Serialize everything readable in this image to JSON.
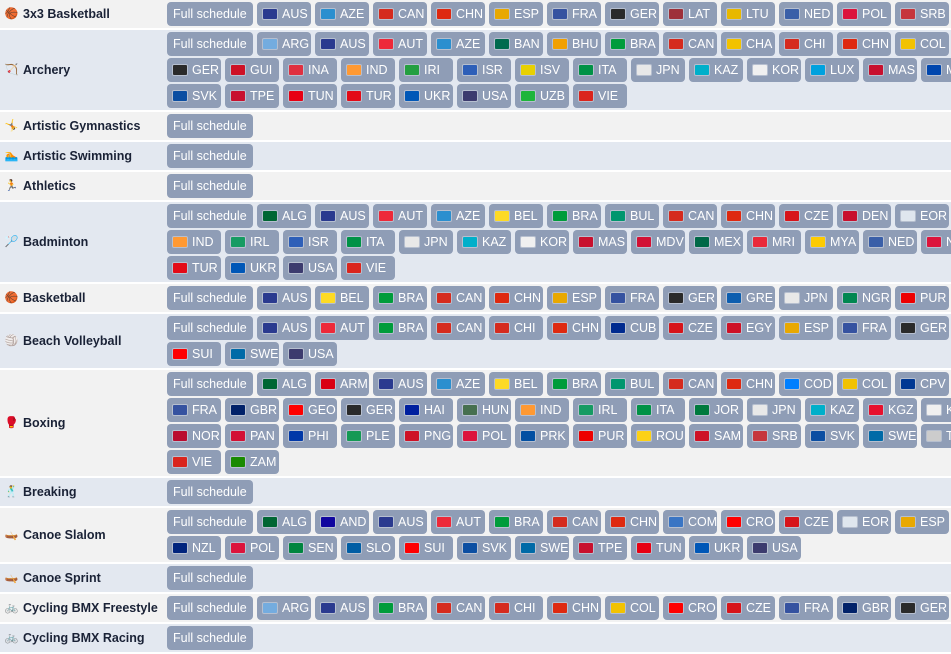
{
  "schedule_label": "Full schedule",
  "flag_colors": {
    "AUS": "#2a3a8f",
    "AZE": "#2b8fcf",
    "CAN": "#d52b1e",
    "CHN": "#de2910",
    "ESP": "#e8a800",
    "FRA": "#3552a0",
    "GER": "#2a2a2a",
    "LAT": "#9e3039",
    "LTU": "#e8b800",
    "NED": "#3a5fa8",
    "POL": "#dc143c",
    "SRB": "#c6363c",
    "ARG": "#74acdf",
    "AUT": "#ed2939",
    "BAN": "#006a4e",
    "BHU": "#f2a000",
    "BRA": "#009c3b",
    "CHA": "#f2c200",
    "CHI": "#d52b1e",
    "COL": "#f2c200",
    "GUI": "#ce1126",
    "INA": "#e03040",
    "IND": "#ff9933",
    "IRI": "#239f40",
    "ISR": "#2e5fb8",
    "ISV": "#e8d000",
    "ITA": "#009246",
    "JPN": "#e8e8e8",
    "KAZ": "#00afca",
    "KOR": "#f0f0f0",
    "LUX": "#00a1de",
    "MAS": "#c8102e",
    "MDA": "#0046ae",
    "SVK": "#0b4ea2",
    "TPE": "#c8102e",
    "TUN": "#e70013",
    "TUR": "#e30a17",
    "UKR": "#0057b7",
    "USA": "#3c3b6e",
    "UZB": "#1eb53a",
    "VIE": "#da251d",
    "ALG": "#006633",
    "BEL": "#fdda24",
    "BUL": "#00966e",
    "CZE": "#d7141a",
    "DEN": "#c8102e",
    "EOR": "#dfe6ee",
    "IRL": "#169b62",
    "MDV": "#d21034",
    "MEX": "#006847",
    "MRI": "#ea2839",
    "MYA": "#fecb00",
    "NEP": "#dc143c",
    "GRE": "#0d5eaf",
    "NGR": "#008751",
    "PUR": "#ed0000",
    "CUB": "#002a8f",
    "EGY": "#ce1126",
    "SUI": "#ff0000",
    "SWE": "#006aa7",
    "ARM": "#d90012",
    "COD": "#007fff",
    "CPV": "#003893",
    "GBR": "#012169",
    "GEO": "#ff0000",
    "HAI": "#00209f",
    "HUN": "#477050",
    "JOR": "#007a3d",
    "KGZ": "#e8112d",
    "NOR": "#ba0c2f",
    "PAN": "#d21034",
    "PHI": "#0038a8",
    "PLE": "#149954",
    "PNG": "#ce1126",
    "PRK": "#024fa2",
    "ROU": "#fcd116",
    "SAM": "#ce1126",
    "ZAM": "#198a00",
    "AND": "#10069f",
    "COM": "#3a75c4",
    "CRO": "#ff0000",
    "SEN": "#00853f",
    "SLO": "#005da4",
    "NZL": "#00247d",
    "CHA2": "#002664"
  },
  "sports": [
    {
      "name": "3x3 Basketball",
      "icon": "basketball-icon",
      "glyph": "🏀",
      "lines": [
        [
          "FS",
          "AUS",
          "AZE",
          "CAN",
          "CHN",
          "ESP",
          "FRA",
          "GER",
          "LAT",
          "LTU",
          "NED",
          "POL",
          "SRB"
        ]
      ]
    },
    {
      "name": "Archery",
      "icon": "archery-icon",
      "glyph": "🏹",
      "lines": [
        [
          "FS",
          "ARG",
          "AUS",
          "AUT",
          "AZE",
          "BAN",
          "BHU",
          "BRA",
          "CAN",
          "CHA",
          "CHI",
          "CHN",
          "COL"
        ],
        [
          "GER",
          "GUI",
          "INA",
          "IND",
          "IRI",
          "ISR",
          "ISV",
          "ITA",
          "JPN",
          "KAZ",
          "KOR",
          "LUX",
          "MAS",
          "MDA"
        ],
        [
          "SVK",
          "TPE",
          "TUN",
          "TUR",
          "UKR",
          "USA",
          "UZB",
          "VIE"
        ]
      ]
    },
    {
      "name": "Artistic Gymnastics",
      "icon": "gymnastics-icon",
      "glyph": "🤸",
      "lines": [
        [
          "FS"
        ]
      ]
    },
    {
      "name": "Artistic Swimming",
      "icon": "swimming-icon",
      "glyph": "🏊",
      "lines": [
        [
          "FS"
        ]
      ]
    },
    {
      "name": "Athletics",
      "icon": "athletics-icon",
      "glyph": "🏃",
      "lines": [
        [
          "FS"
        ]
      ]
    },
    {
      "name": "Badminton",
      "icon": "badminton-icon",
      "glyph": "🏸",
      "lines": [
        [
          "FS",
          "ALG",
          "AUS",
          "AUT",
          "AZE",
          "BEL",
          "BRA",
          "BUL",
          "CAN",
          "CHN",
          "CZE",
          "DEN",
          "EOR"
        ],
        [
          "IND",
          "IRL",
          "ISR",
          "ITA",
          "JPN",
          "KAZ",
          "KOR",
          "MAS",
          "MDV",
          "MEX",
          "MRI",
          "MYA",
          "NED",
          "NEP"
        ],
        [
          "TUR",
          "UKR",
          "USA",
          "VIE"
        ]
      ]
    },
    {
      "name": "Basketball",
      "icon": "basketball-icon",
      "glyph": "🏀",
      "lines": [
        [
          "FS",
          "AUS",
          "BEL",
          "BRA",
          "CAN",
          "CHN",
          "ESP",
          "FRA",
          "GER",
          "GRE",
          "JPN",
          "NGR",
          "PUR"
        ]
      ]
    },
    {
      "name": "Beach Volleyball",
      "icon": "volleyball-icon",
      "glyph": "🏐",
      "lines": [
        [
          "FS",
          "AUS",
          "AUT",
          "BRA",
          "CAN",
          "CHI",
          "CHN",
          "CUB",
          "CZE",
          "EGY",
          "ESP",
          "FRA",
          "GER"
        ],
        [
          "SUI",
          "SWE",
          "USA"
        ]
      ]
    },
    {
      "name": "Boxing",
      "icon": "boxing-glove-icon",
      "glyph": "🥊",
      "lines": [
        [
          "FS",
          "ALG",
          "ARM",
          "AUS",
          "AZE",
          "BEL",
          "BRA",
          "BUL",
          "CAN",
          "CHN",
          "COD",
          "COL",
          "CPV"
        ],
        [
          "FRA",
          "GBR",
          "GEO",
          "GER",
          "HAI",
          "HUN",
          "IND",
          "IRL",
          "ITA",
          "JOR",
          "JPN",
          "KAZ",
          "KGZ",
          "KOR"
        ],
        [
          "NOR",
          "PAN",
          "PHI",
          "PLE",
          "PNG",
          "POL",
          "PRK",
          "PUR",
          "ROU",
          "SAM",
          "SRB",
          "SVK",
          "SWE",
          "T"
        ],
        [
          "VIE",
          "ZAM"
        ]
      ]
    },
    {
      "name": "Breaking",
      "icon": "breaking-icon",
      "glyph": "🕺",
      "lines": [
        [
          "FS"
        ]
      ]
    },
    {
      "name": "Canoe Slalom",
      "icon": "canoe-icon",
      "glyph": "🛶",
      "lines": [
        [
          "FS",
          "ALG",
          "AND",
          "AUS",
          "AUT",
          "BRA",
          "CAN",
          "CHN",
          "COM",
          "CRO",
          "CZE",
          "EOR",
          "ESP"
        ],
        [
          "NZL",
          "POL",
          "SEN",
          "SLO",
          "SUI",
          "SVK",
          "SWE",
          "TPE",
          "TUN",
          "UKR",
          "USA"
        ]
      ]
    },
    {
      "name": "Canoe Sprint",
      "icon": "canoe-icon",
      "glyph": "🛶",
      "lines": [
        [
          "FS"
        ]
      ]
    },
    {
      "name": "Cycling BMX Freestyle",
      "icon": "bmx-icon",
      "glyph": "🚲",
      "lines": [
        [
          "FS",
          "ARG",
          "AUS",
          "BRA",
          "CAN",
          "CHI",
          "CHN",
          "COL",
          "CRO",
          "CZE",
          "FRA",
          "GBR",
          "GER"
        ]
      ]
    },
    {
      "name": "Cycling BMX Racing",
      "icon": "bmx-icon",
      "glyph": "🚲",
      "lines": [
        [
          "FS"
        ]
      ]
    }
  ]
}
